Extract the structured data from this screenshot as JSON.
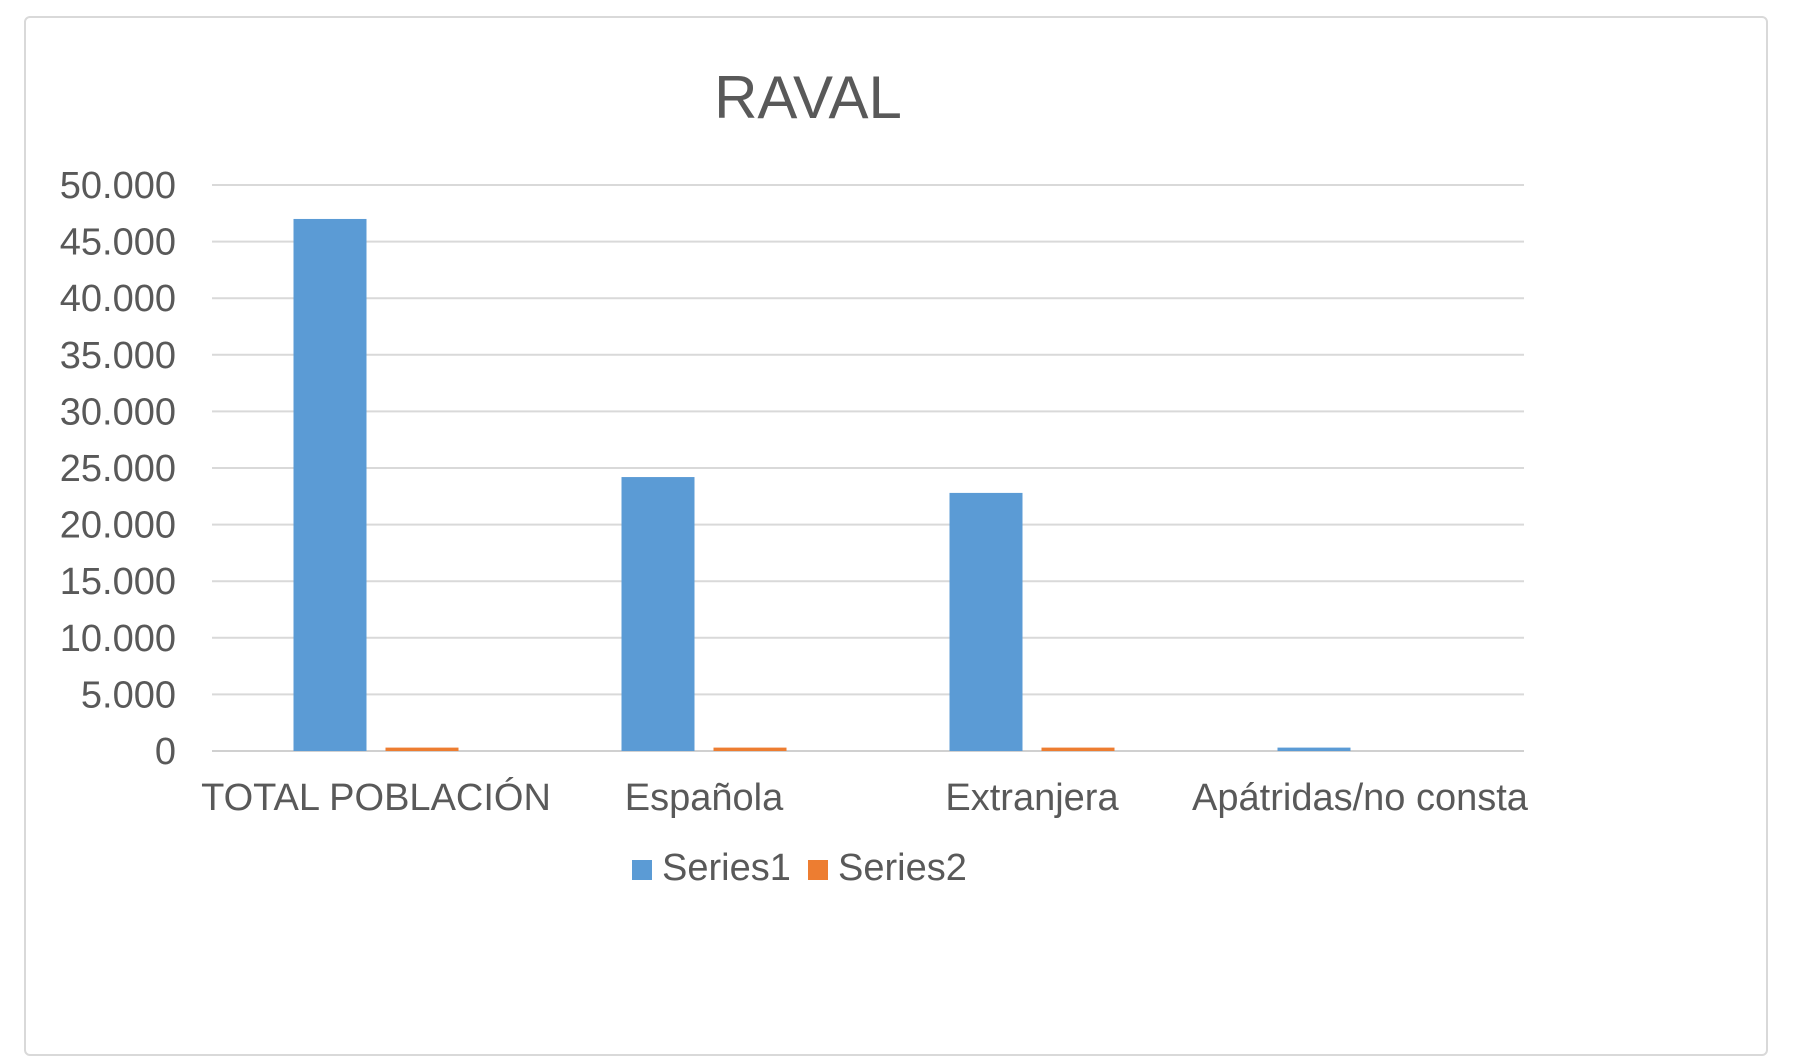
{
  "chart_data": {
    "type": "bar",
    "title": "RAVAL",
    "categories": [
      "TOTAL POBLACIÓN",
      "Española",
      "Extranjera",
      "Apátridas/no consta"
    ],
    "series": [
      {
        "name": "Series1",
        "color": "#5b9bd5",
        "values": [
          47000,
          24200,
          22800,
          300
        ]
      },
      {
        "name": "Series2",
        "color": "#ed7d31",
        "values": [
          300,
          300,
          300,
          0
        ]
      }
    ],
    "ylim": [
      0,
      50000
    ],
    "yticks": [
      "0",
      "5.000",
      "10.000",
      "15.000",
      "20.000",
      "25.000",
      "30.000",
      "35.000",
      "40.000",
      "45.000",
      "50.000"
    ],
    "grid": true,
    "legend_position": "bottom"
  }
}
